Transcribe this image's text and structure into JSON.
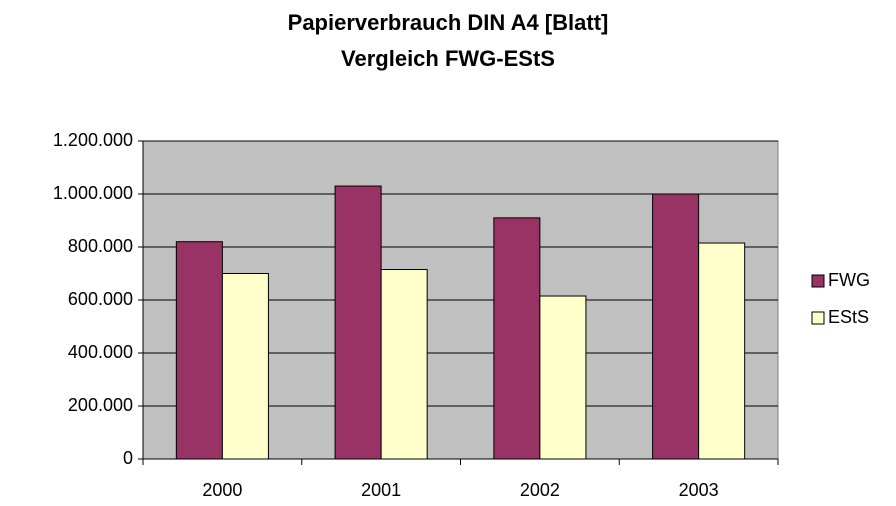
{
  "chart_data": {
    "type": "bar",
    "title": "Papierverbrauch DIN A4 [Blatt]",
    "subtitle": "Vergleich FWG-EStS",
    "categories": [
      "2000",
      "2001",
      "2002",
      "2003"
    ],
    "series": [
      {
        "name": "FWG",
        "color": "#993366",
        "values": [
          820000,
          1030000,
          910000,
          1000000
        ]
      },
      {
        "name": "EStS",
        "color": "#ffffcc",
        "values": [
          700000,
          715000,
          615000,
          815000
        ]
      }
    ],
    "ylim": [
      0,
      1200000
    ],
    "yticks": [
      0,
      {
        "value": 200000,
        "label": "200.000"
      },
      {
        "value": 400000,
        "label": "400.000"
      },
      {
        "value": 600000,
        "label": "600.000"
      },
      {
        "value": 800000,
        "label": "800.000"
      },
      {
        "value": 1000000,
        "label": "1.000.000"
      },
      {
        "value": 1200000,
        "label": "1.200.000"
      }
    ],
    "grid": true,
    "plot_background": "#c0c0c0",
    "legend": "right"
  }
}
